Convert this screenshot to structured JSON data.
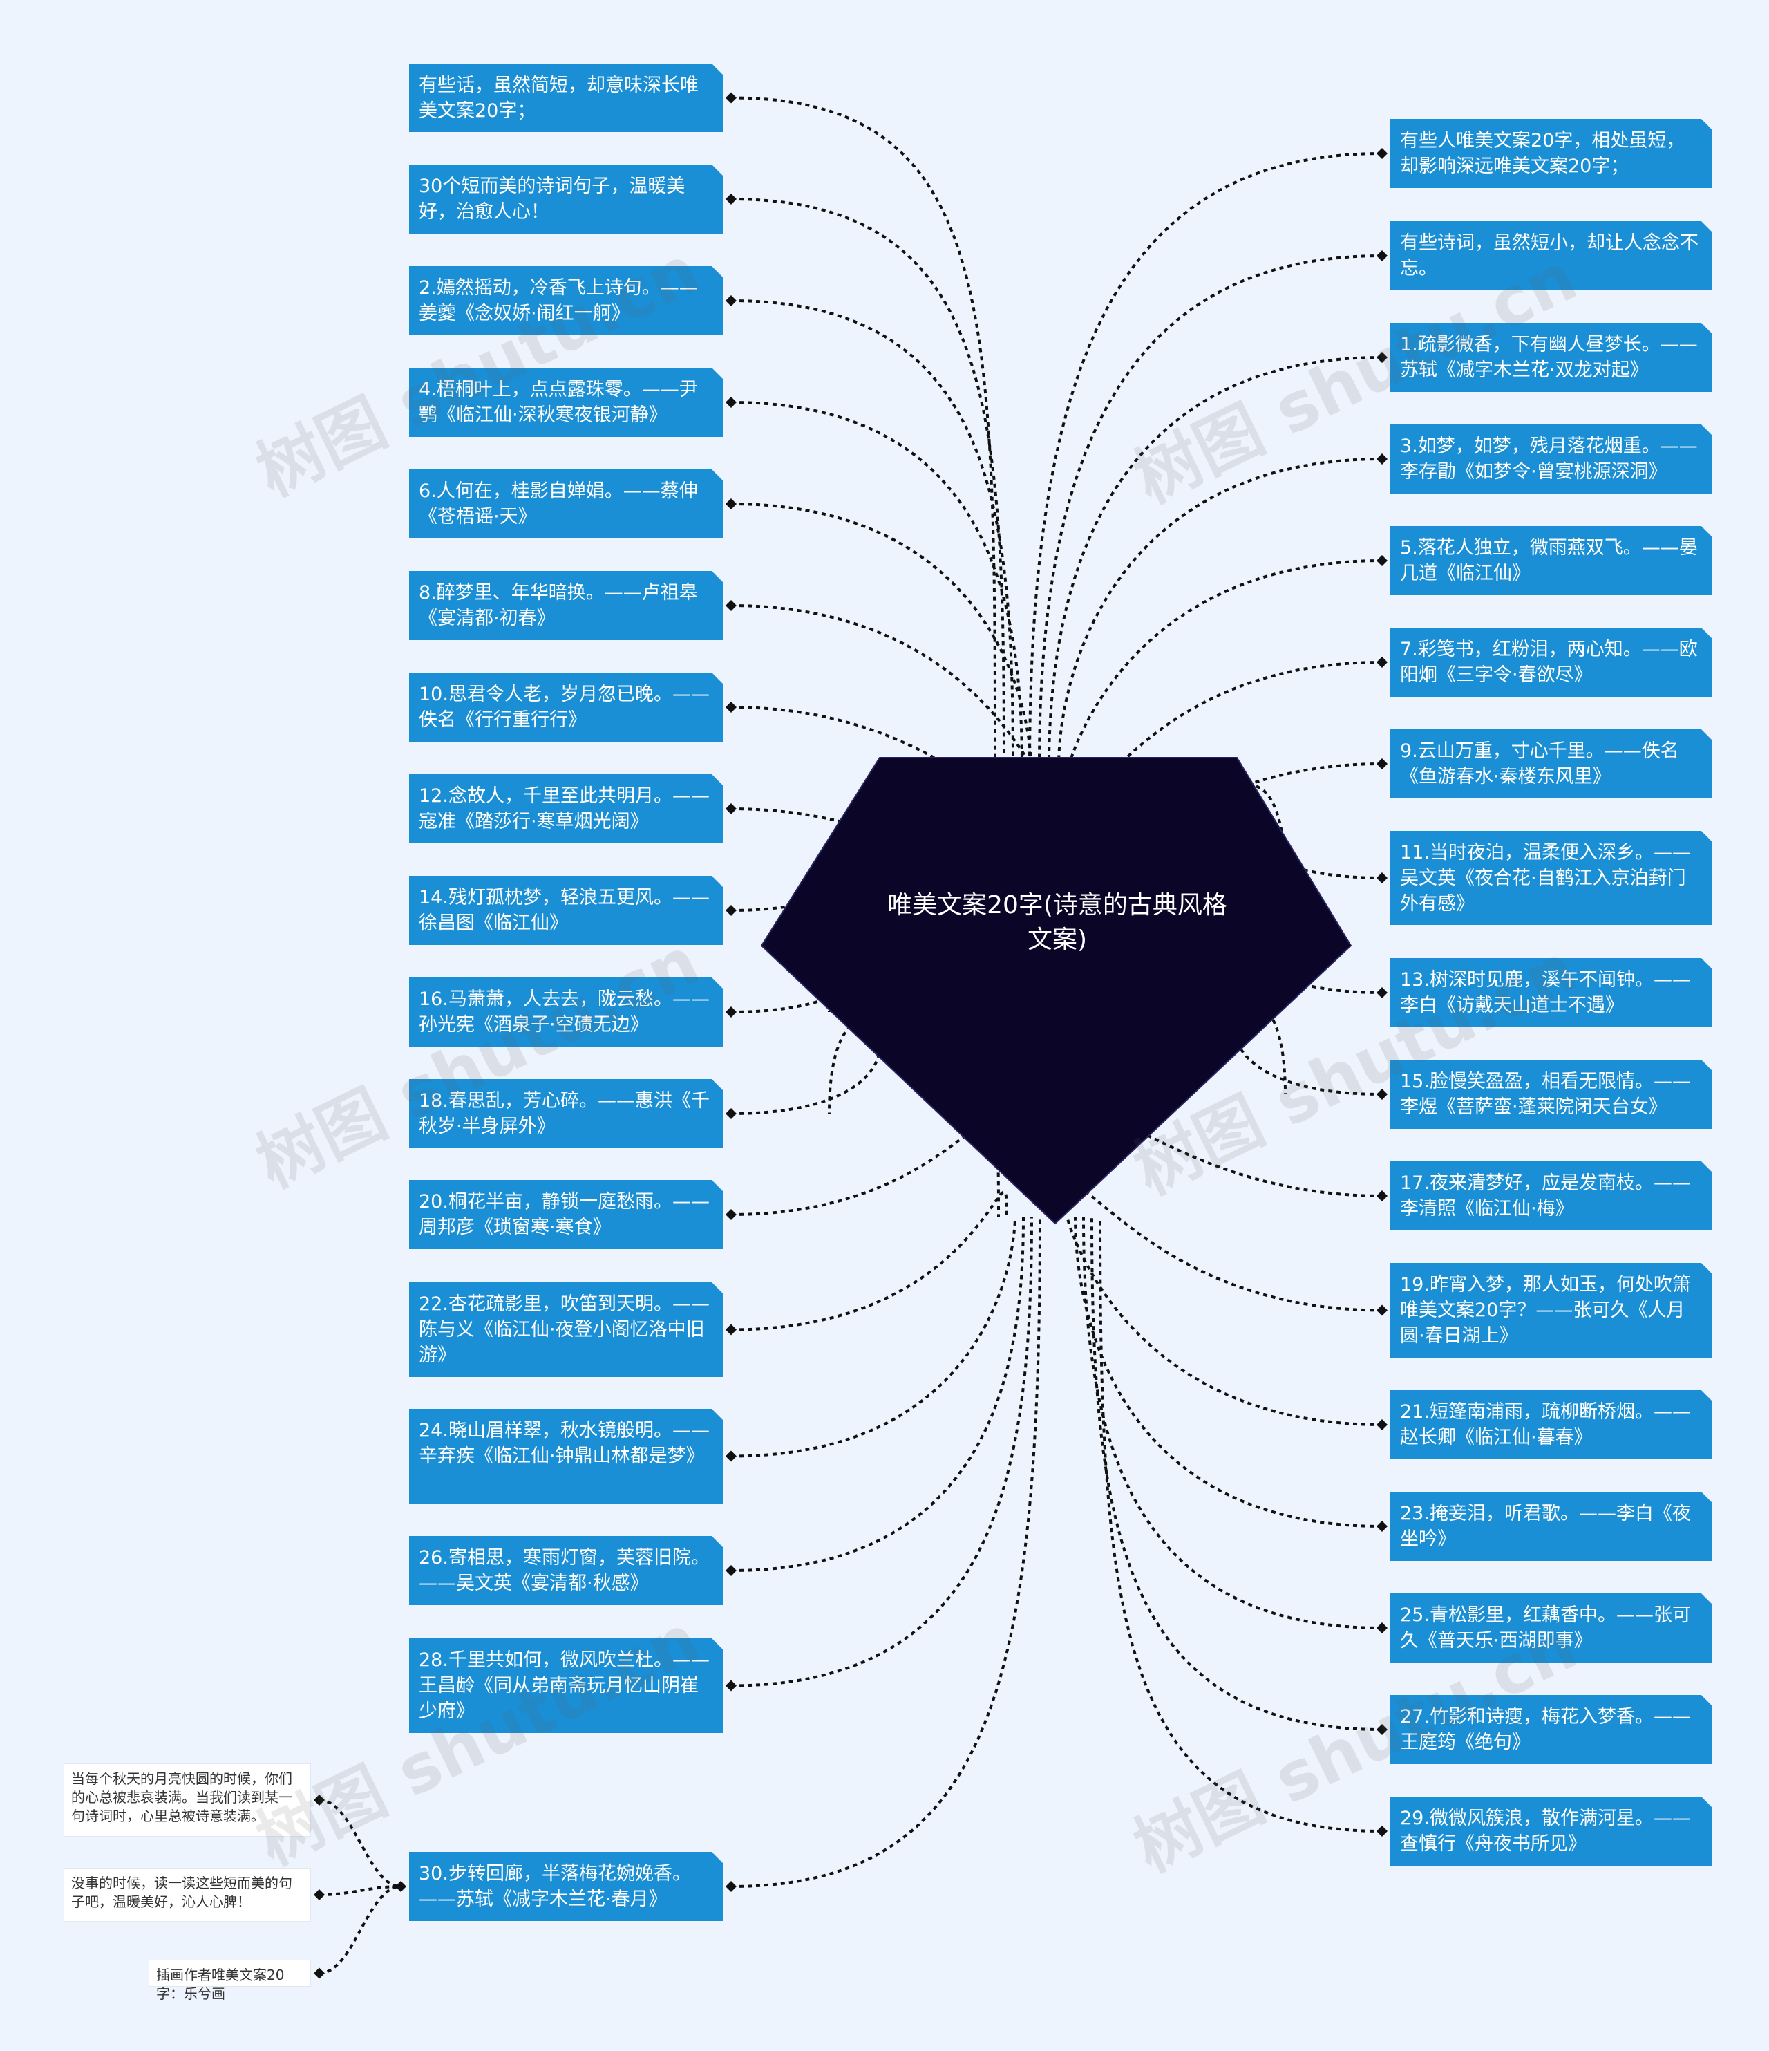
{
  "center": {
    "title": "唯美文案20字(诗意的古典风格文案)"
  },
  "watermark": "树图 shutu.cn",
  "colors": {
    "background": "#eef4fd",
    "node": "#1a8fd6",
    "center": "#0b0628",
    "link": "#111111"
  },
  "left_nodes": [
    "有些话，虽然简短，却意味深长唯美文案20字；",
    "30个短而美的诗词句子，温暖美好，治愈人心！",
    "2.嫣然摇动，冷香飞上诗句。——姜夔《念奴娇·闹红一舸》",
    "4.梧桐叶上，点点露珠零。——尹鹗《临江仙·深秋寒夜银河静》",
    "6.人何在，桂影自婵娟。——蔡伸《苍梧谣·天》",
    "8.醉梦里、年华暗换。——卢祖皋《宴清都·初春》",
    "10.思君令人老，岁月忽已晚。——佚名《行行重行行》",
    "12.念故人，千里至此共明月。——寇准《踏莎行·寒草烟光阔》",
    "14.残灯孤枕梦，轻浪五更风。——徐昌图《临江仙》",
    "16.马萧萧，人去去，陇云愁。——孙光宪《酒泉子·空碛无边》",
    "18.春思乱，芳心碎。——惠洪《千秋岁·半身屏外》",
    "20.桐花半亩，静锁一庭愁雨。——周邦彦《琐窗寒·寒食》",
    "22.杏花疏影里，吹笛到天明。——陈与义《临江仙·夜登小阁忆洛中旧游》",
    "24.晓山眉样翠，秋水镜般明。——辛弃疾《临江仙·钟鼎山林都是梦》",
    "26.寄相思，寒雨灯窗，芙蓉旧院。——吴文英《宴清都·秋感》",
    "28.千里共如何，微风吹兰杜。——王昌龄《同从弟南斋玩月忆山阴崔少府》",
    "30.步转回廊，半落梅花婉娩香。——苏轼《减字木兰花·春月》"
  ],
  "right_nodes": [
    "有些人唯美文案20字，相处虽短，却影响深远唯美文案20字；",
    "有些诗词，虽然短小，却让人念念不忘。",
    "1.疏影微香，下有幽人昼梦长。——苏轼《减字木兰花·双龙对起》",
    "3.如梦，如梦，残月落花烟重。——李存勖《如梦令·曾宴桃源深洞》",
    "5.落花人独立，微雨燕双飞。——晏几道《临江仙》",
    "7.彩笺书，红粉泪，两心知。——欧阳炯《三字令·春欲尽》",
    "9.云山万重，寸心千里。——佚名《鱼游春水·秦楼东风里》",
    "11.当时夜泊，温柔便入深乡。——吴文英《夜合花·自鹤江入京泊葑门外有感》",
    "13.树深时见鹿，溪午不闻钟。——李白《访戴天山道士不遇》",
    "15.脸慢笑盈盈，相看无限情。——李煜《菩萨蛮·蓬莱院闭天台女》",
    "17.夜来清梦好，应是发南枝。——李清照《临江仙·梅》",
    "19.昨宵入梦，那人如玉，何处吹箫唯美文案20字？——张可久《人月圆·春日湖上》",
    "21.短篷南浦雨，疏柳断桥烟。——赵长卿《临江仙·暮春》",
    "23.掩妾泪，听君歌。——李白《夜坐吟》",
    "25.青松影里，红藕香中。——张可久《普天乐·西湖即事》",
    "27.竹影和诗瘦，梅花入梦香。——王庭筠《绝句》",
    "29.微微风簇浪，散作满河星。——查慎行《舟夜书所见》"
  ],
  "sub_notes": [
    "当每个秋天的月亮快圆的时候，你们的心总被悲哀装满。当我们读到某一句诗词时，心里总被诗意装满。",
    "没事的时候，读一读这些短而美的句子吧，温暖美好，沁人心脾！",
    "插画作者唯美文案20字：乐兮画"
  ]
}
